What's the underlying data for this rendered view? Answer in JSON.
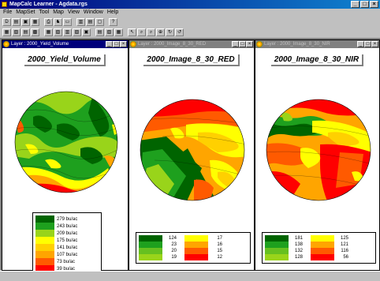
{
  "app": {
    "title": "MapCalc Learner - Agdata.rgs",
    "min": "_",
    "max": "□",
    "close": "×"
  },
  "menu": [
    "File",
    "MapSet",
    "Tool",
    "Map",
    "View",
    "Window",
    "Help"
  ],
  "toolbar1": [
    "D",
    "▤",
    "▣",
    "▦",
    "⎙",
    "♞",
    "▭",
    "▥",
    "▤",
    "▢",
    "?"
  ],
  "toolbar2": [
    "▦",
    "▧",
    "▤",
    "▩",
    "▦",
    "▧",
    "▥",
    "▨",
    "▣",
    "▤",
    "▧",
    "▦",
    "↖",
    "⌕",
    "⌕",
    "⊕",
    "↻",
    "↺"
  ],
  "colors": {
    "c1": "#006400",
    "c2": "#1ea01e",
    "c3": "#99d41a",
    "c4": "#ffff00",
    "c5": "#ffa500",
    "c6": "#ff5a00",
    "c7": "#ff0000"
  },
  "layers": [
    {
      "window_title": "Layer : 2000_Yield_Volume",
      "heading": "2000_Yield_Volume",
      "legend": [
        "279 bu/ac",
        "243 bu/ac",
        "209 bu/ac",
        "175 bu/ac",
        "141 bu/ac",
        "107 bu/ac",
        "73 bu/ac",
        "39 bu/ac"
      ]
    },
    {
      "window_title": "Layer : 2000_Image_8_30_RED",
      "heading": "2000_Image_8_30_RED",
      "legend_left": [
        "124",
        "23",
        "20",
        "19"
      ],
      "legend_right": [
        "17",
        "16",
        "15",
        "12"
      ]
    },
    {
      "window_title": "Layer : 2000_Image_8_30_NIR",
      "heading": "2000_Image_8_30_NIR",
      "legend_left": [
        "181",
        "138",
        "132",
        "128"
      ],
      "legend_right": [
        "125",
        "121",
        "116",
        "56"
      ]
    }
  ]
}
